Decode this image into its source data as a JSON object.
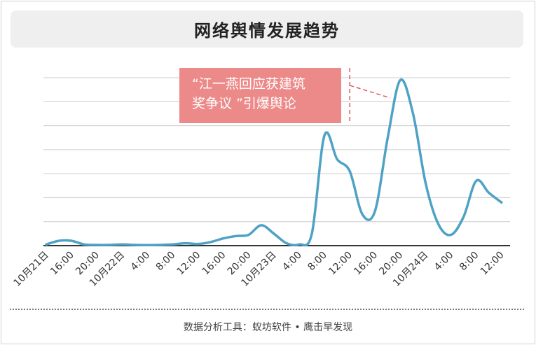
{
  "header": {
    "title": "网络舆情发展趋势"
  },
  "annotation": {
    "line1": "“江一燕回应获建筑",
    "line2": "奖争议 ”引爆舆论"
  },
  "footer": {
    "source": "数据分析工具：蚁坊软件 • 鹰击早发现"
  },
  "colors": {
    "line": "#4ea2c5",
    "annotation_bg": "#ec8a89",
    "annotation_marker": "#e05a5a",
    "grid": "#cccccc",
    "axis": "#333333"
  },
  "chart_data": {
    "type": "line",
    "title": "网络舆情发展趋势",
    "xlabel": "",
    "ylabel": "",
    "grid": true,
    "legend": "none",
    "ylim": [
      0,
      7
    ],
    "categories": [
      "10月21日",
      "16:00",
      "20:00",
      "10月22日",
      "4:00",
      "8:00",
      "12:00",
      "16:00",
      "20:00",
      "10月23日",
      "4:00",
      "8:00",
      "12:00",
      "16:00",
      "20:00",
      "10月24日",
      "4:00",
      "8:00",
      "12:00"
    ],
    "series": [
      {
        "name": "",
        "points": [
          [
            0,
            0.05
          ],
          [
            0.5,
            0.2
          ],
          [
            1.0,
            0.2
          ],
          [
            1.5,
            0.05
          ],
          [
            2.0,
            0.03
          ],
          [
            2.5,
            0.03
          ],
          [
            3.0,
            0.05
          ],
          [
            3.5,
            0.03
          ],
          [
            4.0,
            0.02
          ],
          [
            4.5,
            0.03
          ],
          [
            5.0,
            0.05
          ],
          [
            5.5,
            0.1
          ],
          [
            6.0,
            0.07
          ],
          [
            6.5,
            0.15
          ],
          [
            7.0,
            0.3
          ],
          [
            7.5,
            0.4
          ],
          [
            8.0,
            0.45
          ],
          [
            8.5,
            0.85
          ],
          [
            9.0,
            0.5
          ],
          [
            9.5,
            0.1
          ],
          [
            10.0,
            0.05
          ],
          [
            10.5,
            0.5
          ],
          [
            11.0,
            4.6
          ],
          [
            11.5,
            3.6
          ],
          [
            12.0,
            3.1
          ],
          [
            12.5,
            1.3
          ],
          [
            13.0,
            1.45
          ],
          [
            13.5,
            4.5
          ],
          [
            14.0,
            6.9
          ],
          [
            14.5,
            5.5
          ],
          [
            15.0,
            2.6
          ],
          [
            15.5,
            0.9
          ],
          [
            16.0,
            0.45
          ],
          [
            16.5,
            1.2
          ],
          [
            17.0,
            2.7
          ],
          [
            17.5,
            2.2
          ],
          [
            18.0,
            1.8
          ]
        ]
      }
    ],
    "annotations": [
      {
        "text": "“江一燕回应获建筑奖争议 ”引爆舆论",
        "x": 12.0
      }
    ]
  }
}
